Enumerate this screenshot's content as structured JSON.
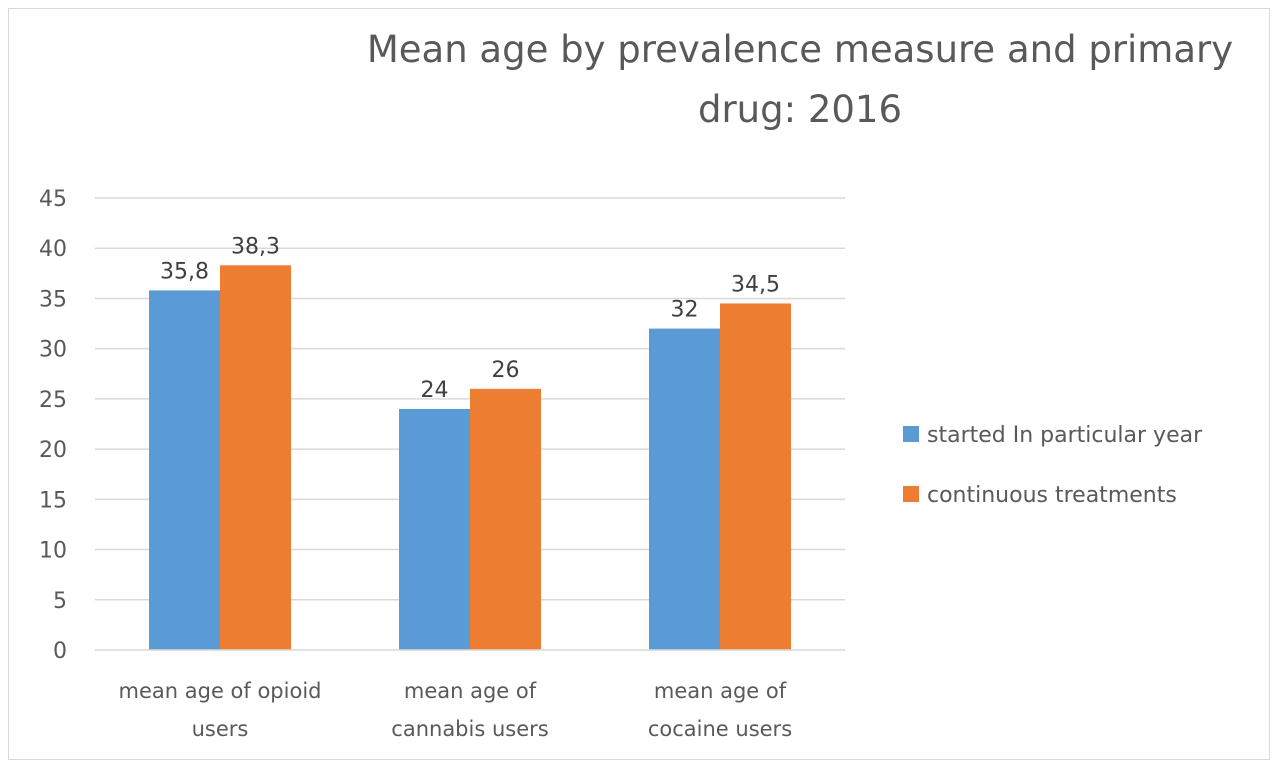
{
  "chart_data": {
    "type": "bar",
    "title": "Mean age by prevalence measure and primary drug: 2016",
    "title_lines": [
      "Mean age by prevalence measure and primary",
      "drug: 2016"
    ],
    "categories": [
      "mean age of opioid users",
      "mean age of cannabis users",
      "mean age of cocaine users"
    ],
    "category_lines": [
      [
        "mean age of opioid",
        "users"
      ],
      [
        "mean age of",
        "cannabis users"
      ],
      [
        "mean age of",
        "cocaine users"
      ]
    ],
    "series": [
      {
        "name": "started In particular year",
        "values": [
          35.8,
          24,
          32
        ],
        "labels": [
          "35,8",
          "24",
          "32"
        ],
        "color": "#5B9BD5"
      },
      {
        "name": "continuous treatments",
        "values": [
          38.3,
          26,
          34.5
        ],
        "labels": [
          "38,3",
          "26",
          "34,5"
        ],
        "color": "#ED7D31"
      }
    ],
    "xlabel": "",
    "ylabel": "",
    "ylim": [
      0,
      45
    ],
    "yticks": [
      0,
      5,
      10,
      15,
      20,
      25,
      30,
      35,
      40,
      45
    ],
    "grid": true,
    "legend_position": "right"
  }
}
